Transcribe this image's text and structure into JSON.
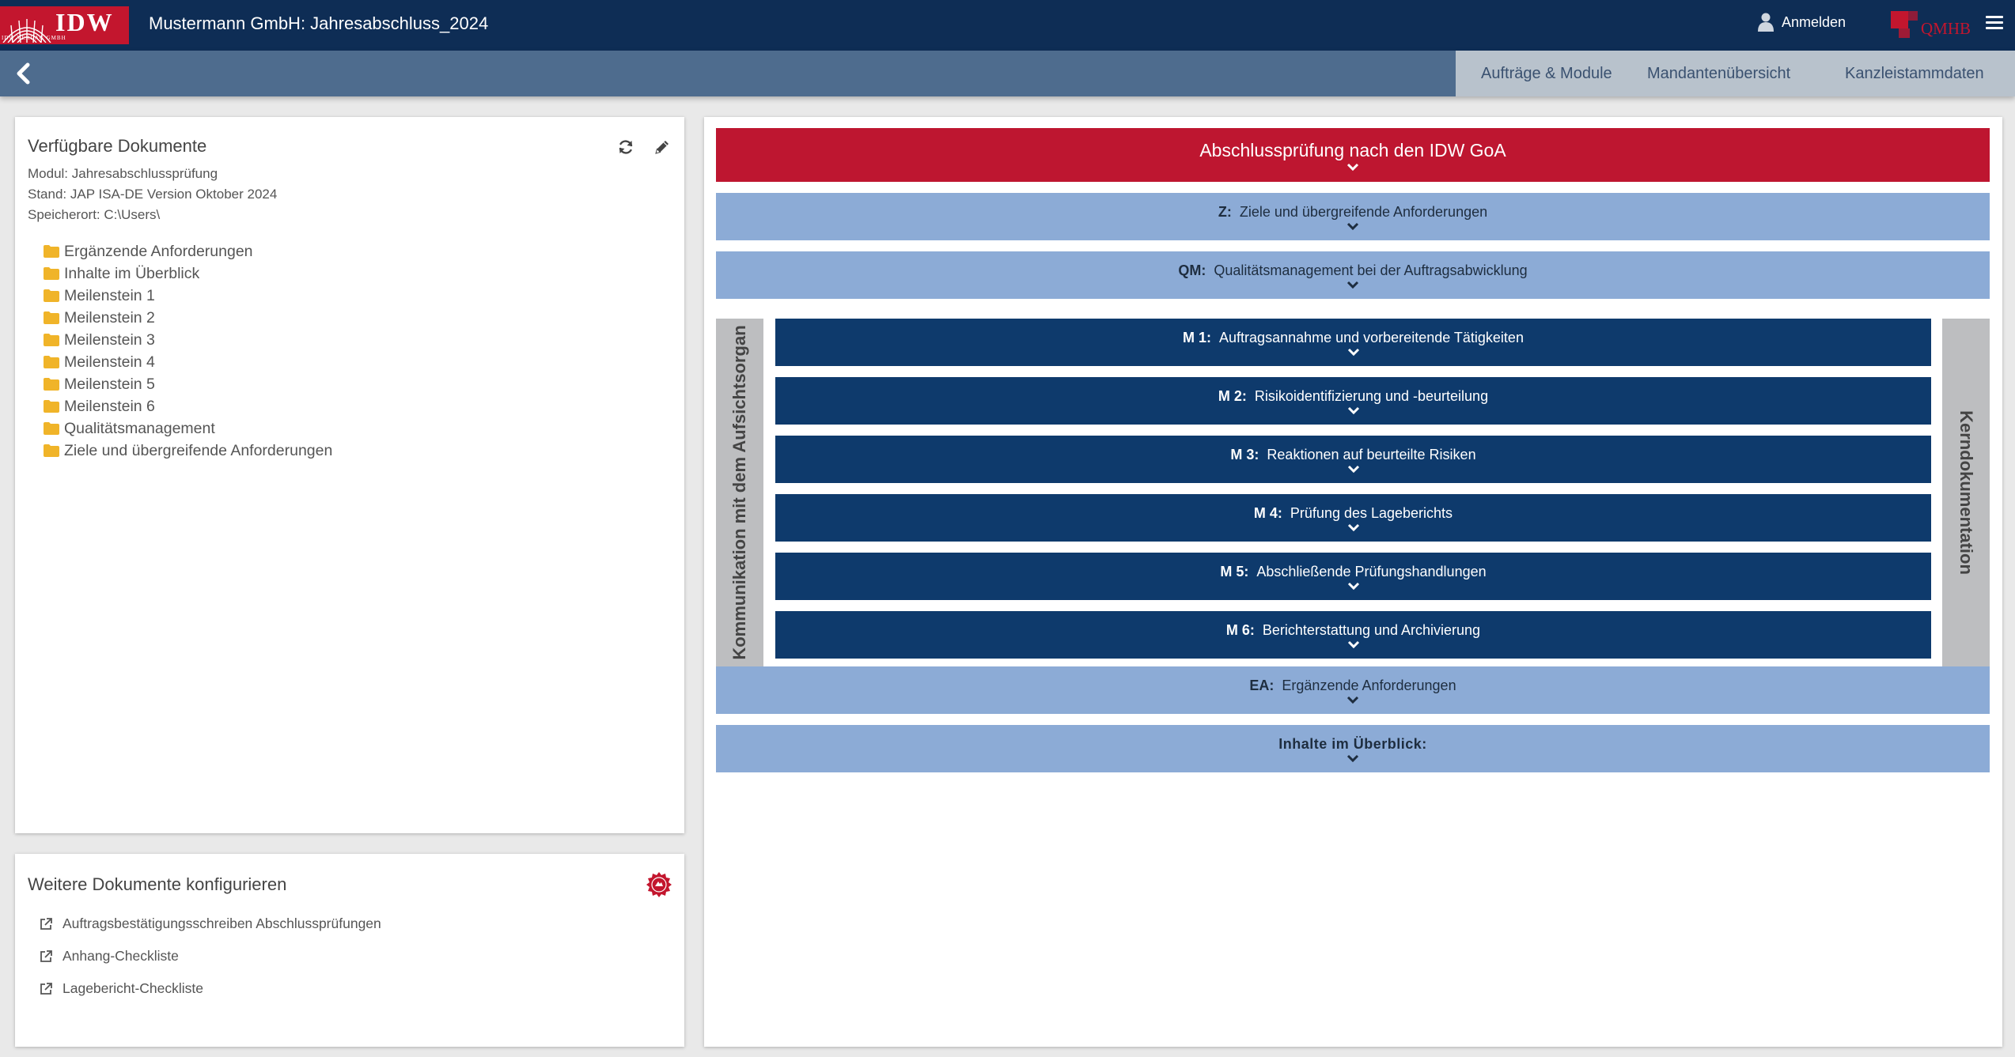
{
  "header": {
    "logo_text": "IDW",
    "logo_subtext": "IDW VERLAG GMBH",
    "title": "Mustermann GmbH: Jahresabschluss_2024",
    "login_label": "Anmelden",
    "qmhb_text": "QMHB"
  },
  "nav": {
    "tabs": [
      {
        "label": "Aufträge & Module"
      },
      {
        "label": "Mandantenübersicht"
      },
      {
        "label": "Kanzleistammdaten"
      }
    ]
  },
  "docs_panel": {
    "title": "Verfügbare Dokumente",
    "module": "Modul: Jahresabschlussprüfung",
    "stand": "Stand: JAP ISA-DE Version Oktober 2024",
    "location": "Speicherort: C:\\Users\\",
    "folders": [
      "Ergänzende Anforderungen",
      "Inhalte im Überblick",
      "Meilenstein 1",
      "Meilenstein 2",
      "Meilenstein 3",
      "Meilenstein 4",
      "Meilenstein 5",
      "Meilenstein 6",
      "Qualitätsmanagement",
      "Ziele und übergreifende Anforderungen"
    ]
  },
  "config_panel": {
    "title": "Weitere Dokumente konfigurieren",
    "links": [
      "Auftragsbestätigungsschreiben Abschlussprüfungen",
      "Anhang-Checkliste",
      "Lagebericht-Checkliste"
    ]
  },
  "main": {
    "top_bar": "Abschlussprüfung nach den IDW GoA",
    "z": {
      "code": "Z:",
      "label": "Ziele und übergreifende Anforderungen"
    },
    "qm": {
      "code": "QM:",
      "label": "Qualitätsmanagement bei der Auftragsabwicklung"
    },
    "milestones": [
      {
        "code": "M 1:",
        "label": "Auftragsannahme und vorbereitende Tätigkeiten"
      },
      {
        "code": "M 2:",
        "label": "Risikoidentifizierung und -beurteilung"
      },
      {
        "code": "M 3:",
        "label": "Reaktionen auf beurteilte Risiken"
      },
      {
        "code": "M 4:",
        "label": "Prüfung des Lageberichts"
      },
      {
        "code": "M 5:",
        "label": "Abschließende Prüfungshandlungen"
      },
      {
        "code": "M 6:",
        "label": "Berichterstattung und Archivierung"
      }
    ],
    "left_column": "Kommunikation mit dem Aufsichtsorgan",
    "right_column": "Kerndokumentation",
    "ea": {
      "code": "EA:",
      "label": "Ergänzende Anforderungen"
    },
    "overview": "Inhalte im Überblick:"
  },
  "colors": {
    "header_bg": "#0e2d55",
    "navbar_bg": "#4e6c8e",
    "accent_red": "#be1630",
    "light_blue": "#8cabd6",
    "dark_blue": "#0e3a6c",
    "folder_yellow": "#f0b429"
  },
  "icons": {
    "back": "chevron-left-icon",
    "user": "user-icon",
    "menu": "hamburger-icon",
    "refresh": "refresh-icon",
    "edit": "pencil-icon",
    "folder": "folder-icon",
    "external": "external-link-icon",
    "badge": "seal-badge-icon",
    "expand": "chevron-down-icon"
  }
}
